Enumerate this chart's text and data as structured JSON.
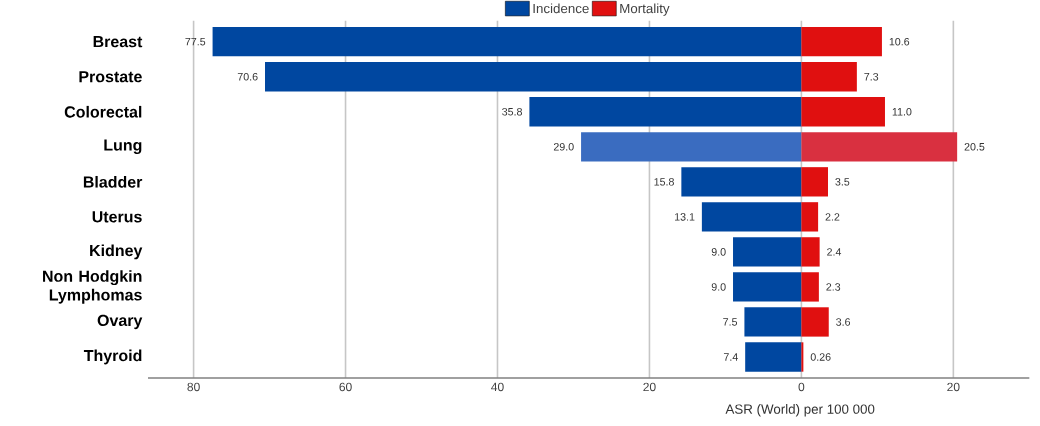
{
  "chart_data": {
    "type": "bar",
    "orientation": "horizontal",
    "xlabel": "ASR (World) per 100 000",
    "categories": [
      "Breast",
      "Prostate",
      "Colorectal",
      "Lung",
      "Bladder",
      "Uterus",
      "Kidney",
      "Non Hodgkin Lymphomas",
      "Ovary",
      "Thyroid"
    ],
    "series": [
      {
        "name": "Incidence",
        "color": "#0047a0",
        "colors": [
          "#0047a0",
          "#0047a0",
          "#0047a0",
          "#3a6cc0",
          "#0047a0",
          "#0047a0",
          "#0047a0",
          "#0047a0",
          "#0047a0",
          "#0047a0"
        ],
        "values": [
          77.5,
          70.6,
          35.8,
          29.0,
          15.8,
          13.1,
          9.0,
          9.0,
          7.5,
          7.4
        ],
        "base": [
          -77.5,
          -70.6,
          -35.8,
          -29.0,
          -15.8,
          -13.1,
          -9.0,
          -9.0,
          -7.5,
          -7.4
        ],
        "value_labels": [
          "77.5",
          "70.6",
          "35.8",
          "29.0",
          "15.8",
          "13.1",
          "9.0",
          "9.0",
          "7.5",
          "7.4"
        ]
      },
      {
        "name": "Mortality",
        "color": "#e01010",
        "colors": [
          "#e01010",
          "#e01010",
          "#e01010",
          "#d93040",
          "#e01010",
          "#e01010",
          "#e01010",
          "#e01010",
          "#e01010",
          "#e01010"
        ],
        "values": [
          10.6,
          7.3,
          11.0,
          20.5,
          3.5,
          2.2,
          2.4,
          2.3,
          3.6,
          0.26
        ],
        "value_labels": [
          "10.6",
          "7.3",
          "11.0",
          "20.5",
          "3.5",
          "2.2",
          "2.4",
          "2.3",
          "3.6",
          "0.26"
        ]
      }
    ],
    "xlim": [
      -86,
      30
    ],
    "xticks": [
      {
        "value": -80,
        "label": "80"
      },
      {
        "value": -60,
        "label": "60"
      },
      {
        "value": -40,
        "label": "40"
      },
      {
        "value": -20,
        "label": "20"
      },
      0,
      20
    ],
    "grid": "x",
    "legend": "top"
  }
}
